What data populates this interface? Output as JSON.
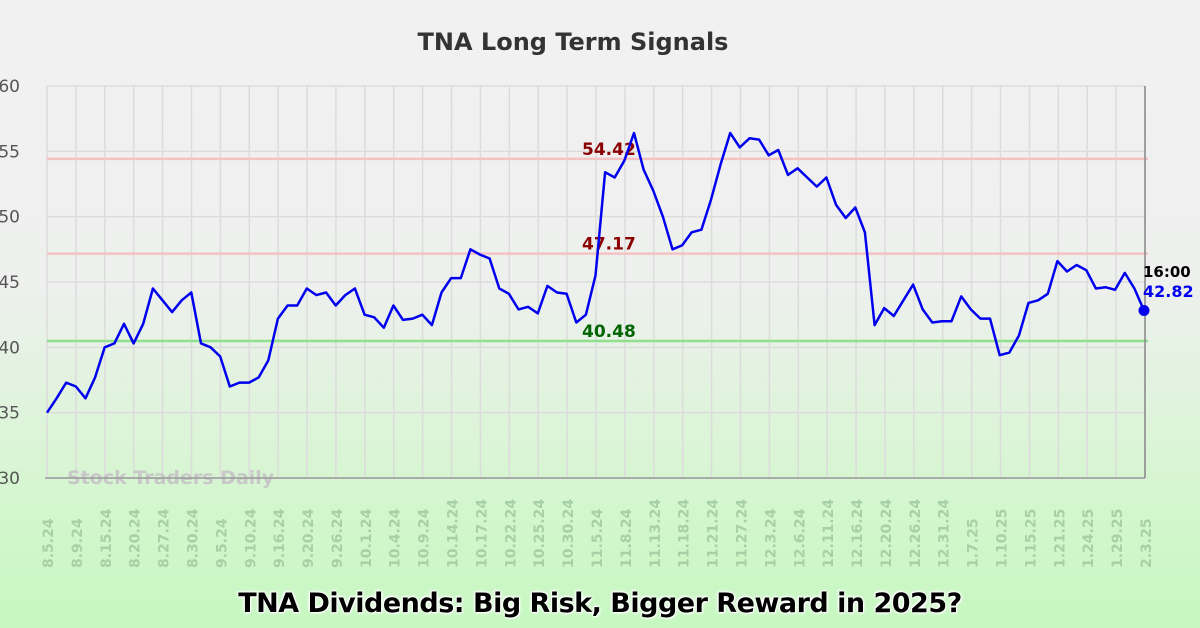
{
  "headline": "TNA Dividends: Big Risk, Bigger Reward in 2025?",
  "chart_data": {
    "type": "line",
    "title": "TNA Long Term Signals",
    "watermark": "Stock Traders Daily",
    "ylim": [
      30,
      60
    ],
    "yticks": [
      30,
      35,
      40,
      45,
      50,
      55,
      60
    ],
    "grid": true,
    "xtick_labels": [
      "8.5.24",
      "8.9.24",
      "8.15.24",
      "8.20.24",
      "8.27.24",
      "8.30.24",
      "9.5.24",
      "9.10.24",
      "9.16.24",
      "9.20.24",
      "9.26.24",
      "10.1.24",
      "10.4.24",
      "10.9.24",
      "10.14.24",
      "10.17.24",
      "10.22.24",
      "10.25.24",
      "10.30.24",
      "11.5.24",
      "11.8.24",
      "11.13.24",
      "11.18.24",
      "11.21.24",
      "11.27.24",
      "12.3.24",
      "12.6.24",
      "12.11.24",
      "12.16.24",
      "12.20.24",
      "12.26.24",
      "12.31.24",
      "1.7.25",
      "1.10.25",
      "1.15.25",
      "1.21.25",
      "1.24.25",
      "1.29.25",
      "2.3.25"
    ],
    "series": [
      {
        "color": "#0000ee",
        "values": [
          35.0,
          36.1,
          37.3,
          37.0,
          36.1,
          37.7,
          40.0,
          40.3,
          41.8,
          40.3,
          41.8,
          44.5,
          43.6,
          42.7,
          43.6,
          44.2,
          40.3,
          40.0,
          39.3,
          37.0,
          37.3,
          37.3,
          37.7,
          39.0,
          42.2,
          43.2,
          43.2,
          44.5,
          44.0,
          44.2,
          43.2,
          44.0,
          44.5,
          42.5,
          42.3,
          41.5,
          43.2,
          42.1,
          42.2,
          42.5,
          41.7,
          44.2,
          45.3,
          45.3,
          47.5,
          47.1,
          46.8,
          44.5,
          44.1,
          42.9,
          43.1,
          42.6,
          44.7,
          44.2,
          44.1,
          41.9,
          42.5,
          45.5,
          53.4,
          53.0,
          54.3,
          56.4,
          53.6,
          52.0,
          50.0,
          47.5,
          47.8,
          48.8,
          49.0,
          51.3,
          54.0,
          56.4,
          55.3,
          56.0,
          55.9,
          54.7,
          55.1,
          53.2,
          53.7,
          53.0,
          52.3,
          53.0,
          50.9,
          49.9,
          50.7,
          48.8,
          41.7,
          43.0,
          42.4,
          43.6,
          44.8,
          42.9,
          41.9,
          42.0,
          42.0,
          43.9,
          42.9,
          42.2,
          42.2,
          39.4,
          39.6,
          40.9,
          43.4,
          43.6,
          44.1,
          46.6,
          45.8,
          46.3,
          45.9,
          44.5,
          44.6,
          44.4,
          45.7,
          44.5,
          42.82
        ]
      }
    ],
    "reference_lines": [
      {
        "value": 54.42,
        "label": "54.42",
        "line_color": "#f4c2c2",
        "label_color": "#8b0000"
      },
      {
        "value": 47.17,
        "label": "47.17",
        "line_color": "#f4c2c2",
        "label_color": "#8b0000"
      },
      {
        "value": 40.48,
        "label": "40.48",
        "line_color": "#90e090",
        "label_color": "#006400"
      }
    ],
    "last_point": {
      "time": "16:00",
      "value": "42.82"
    }
  }
}
